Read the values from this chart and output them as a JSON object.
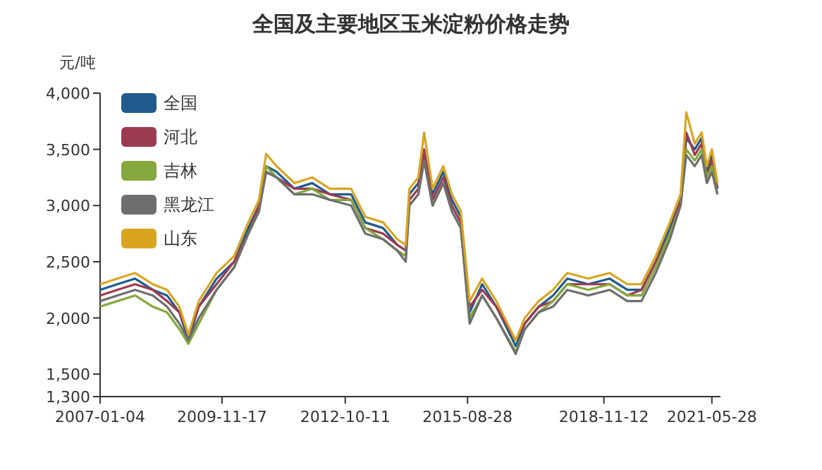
{
  "chart_data": {
    "type": "line",
    "title": "全国及主要地区玉米淀粉价格走势",
    "ylabel": "元/吨",
    "x": [
      "2007-01-04",
      "2007-06-01",
      "2007-11-01",
      "2008-04-01",
      "2008-08-01",
      "2008-11-15",
      "2009-02-01",
      "2009-05-01",
      "2009-10-01",
      "2010-03-01",
      "2010-07-01",
      "2010-10-01",
      "2010-12-01",
      "2011-03-01",
      "2011-08-01",
      "2012-01-01",
      "2012-06-01",
      "2012-12-01",
      "2013-04-01",
      "2013-09-01",
      "2014-01-01",
      "2014-03-15",
      "2014-04-15",
      "2014-07-01",
      "2014-08-20",
      "2014-11-01",
      "2015-02-01",
      "2015-04-15",
      "2015-07-01",
      "2015-09-15",
      "2016-01-01",
      "2016-05-01",
      "2016-10-15",
      "2017-01-01",
      "2017-05-01",
      "2017-09-01",
      "2018-01-01",
      "2018-07-01",
      "2019-01-01",
      "2019-06-01",
      "2019-10-01",
      "2020-02-01",
      "2020-06-01",
      "2020-09-01",
      "2020-10-20",
      "2021-01-01",
      "2021-03-01",
      "2021-04-15",
      "2021-05-28",
      "2021-07-15"
    ],
    "series": [
      {
        "name": "全国",
        "color": "#1f5a8e",
        "values": [
          2250,
          2300,
          2350,
          2250,
          2200,
          2050,
          1800,
          2100,
          2350,
          2500,
          2800,
          3000,
          3350,
          3300,
          3150,
          3200,
          3100,
          3100,
          2850,
          2800,
          2650,
          2600,
          3100,
          3200,
          3450,
          3100,
          3300,
          3050,
          2900,
          2050,
          2300,
          2100,
          1750,
          1950,
          2100,
          2200,
          2350,
          2300,
          2350,
          2250,
          2250,
          2500,
          2800,
          3050,
          3600,
          3500,
          3600,
          3300,
          3450,
          3150
        ]
      },
      {
        "name": "河北",
        "color": "#9b3b52",
        "values": [
          2200,
          2250,
          2300,
          2250,
          2150,
          2050,
          1850,
          2100,
          2300,
          2500,
          2750,
          3000,
          3300,
          3250,
          3150,
          3150,
          3100,
          3050,
          2800,
          2750,
          2650,
          2600,
          3050,
          3150,
          3500,
          3050,
          3250,
          3000,
          2850,
          2100,
          2250,
          2100,
          1800,
          1950,
          2100,
          2150,
          2300,
          2300,
          2300,
          2200,
          2250,
          2500,
          2750,
          3050,
          3650,
          3450,
          3550,
          3250,
          3400,
          3150
        ]
      },
      {
        "name": "吉林",
        "color": "#84a83c",
        "values": [
          2100,
          2150,
          2200,
          2100,
          2050,
          1900,
          1770,
          1950,
          2250,
          2450,
          2750,
          2950,
          3350,
          3250,
          3100,
          3150,
          3050,
          3050,
          2800,
          2700,
          2600,
          2550,
          3000,
          3100,
          3400,
          3000,
          3200,
          2950,
          2800,
          2000,
          2200,
          2000,
          1700,
          1900,
          2050,
          2150,
          2300,
          2250,
          2300,
          2200,
          2200,
          2450,
          2750,
          3000,
          3500,
          3400,
          3500,
          3250,
          3350,
          3100
        ]
      },
      {
        "name": "黑龙江",
        "color": "#6e6e6e",
        "values": [
          2150,
          2200,
          2250,
          2200,
          2100,
          1950,
          1800,
          2000,
          2250,
          2450,
          2750,
          2950,
          3300,
          3250,
          3100,
          3100,
          3050,
          3000,
          2750,
          2700,
          2600,
          2500,
          3000,
          3100,
          3400,
          3000,
          3200,
          2950,
          2800,
          1950,
          2200,
          2000,
          1680,
          1900,
          2050,
          2100,
          2250,
          2200,
          2250,
          2150,
          2150,
          2400,
          2700,
          3000,
          3450,
          3350,
          3450,
          3200,
          3300,
          3100
        ]
      },
      {
        "name": "山东",
        "color": "#d9a521",
        "values": [
          2300,
          2350,
          2400,
          2300,
          2250,
          2100,
          1850,
          2150,
          2400,
          2550,
          2850,
          3050,
          3460,
          3350,
          3200,
          3250,
          3150,
          3150,
          2900,
          2850,
          2700,
          2650,
          3150,
          3250,
          3650,
          3150,
          3350,
          3100,
          2950,
          2150,
          2350,
          2150,
          1800,
          2000,
          2150,
          2250,
          2400,
          2350,
          2400,
          2300,
          2300,
          2550,
          2850,
          3100,
          3830,
          3550,
          3650,
          3350,
          3500,
          3200
        ]
      }
    ],
    "xlim": [
      "2007-01-04",
      "2021-08-10"
    ],
    "xticks": [
      "2007-01-04",
      "2009-11-17",
      "2012-10-11",
      "2015-08-28",
      "2018-11-12",
      "2021-05-28"
    ],
    "ylim": [
      1300,
      4000
    ],
    "yticks": [
      {
        "value": 1300,
        "label": "1,300"
      },
      {
        "value": 1500,
        "label": "1,500"
      },
      {
        "value": 2000,
        "label": "2,000"
      },
      {
        "value": 2500,
        "label": "2,500"
      },
      {
        "value": 3000,
        "label": "3,000"
      },
      {
        "value": 3500,
        "label": "3,500"
      },
      {
        "value": 4000,
        "label": "4,000"
      }
    ],
    "grid": false,
    "legend": "top left",
    "marker": "none",
    "line_style": "solid"
  }
}
